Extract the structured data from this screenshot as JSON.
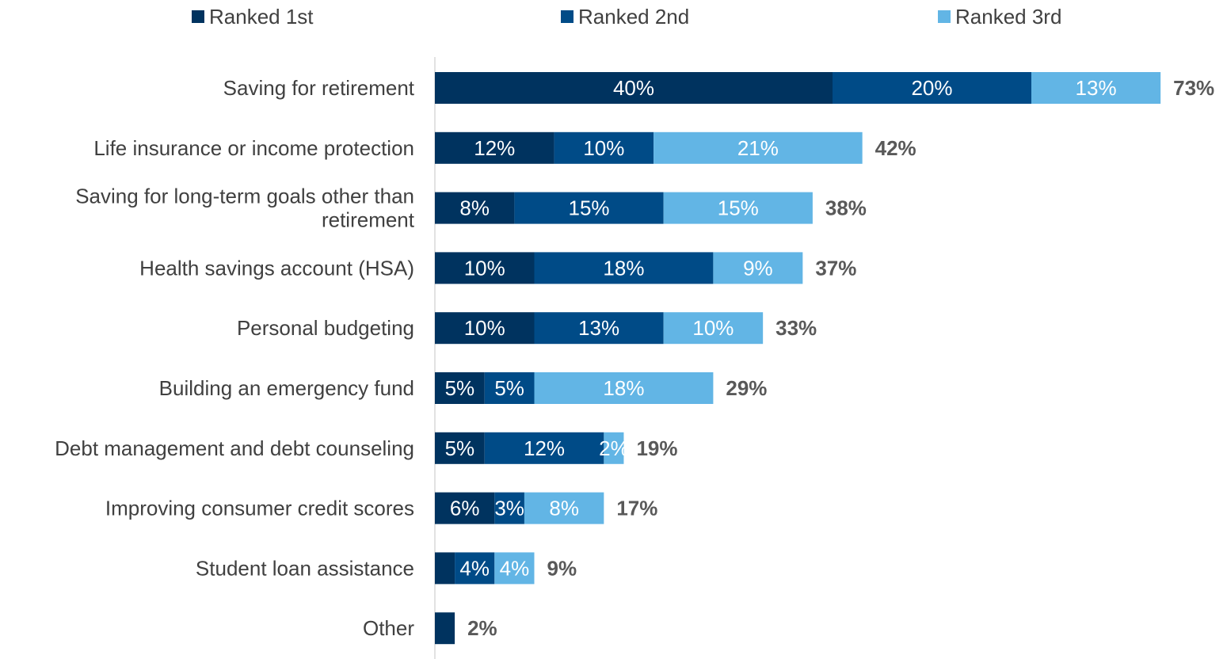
{
  "chart_data": {
    "type": "bar",
    "orientation": "horizontal",
    "stacked": true,
    "title": "",
    "xlabel": "",
    "ylabel": "",
    "xlim": [
      0,
      75
    ],
    "grid": false,
    "legend_position": "top",
    "categories": [
      [
        "Saving for retirement"
      ],
      [
        "Life insurance or income protection"
      ],
      [
        "Saving for long-term goals other than",
        "retirement"
      ],
      [
        "Health savings account (HSA)"
      ],
      [
        "Personal budgeting"
      ],
      [
        "Building an emergency fund"
      ],
      [
        "Debt management and debt counseling"
      ],
      [
        "Improving consumer credit scores"
      ],
      [
        "Student loan assistance"
      ],
      [
        "Other"
      ]
    ],
    "series": [
      {
        "name": "Ranked 1st",
        "color": "#00335F",
        "label_color": "#ffffff",
        "values": [
          40,
          12,
          8,
          10,
          10,
          5,
          5,
          6,
          2,
          2
        ],
        "labels": [
          "40%",
          "12%",
          "8%",
          "10%",
          "10%",
          "5%",
          "5%",
          "6%",
          "",
          ""
        ]
      },
      {
        "name": "Ranked 2nd",
        "color": "#004B87",
        "label_color": "#ffffff",
        "values": [
          20,
          10,
          15,
          18,
          13,
          5,
          12,
          3,
          4,
          0
        ],
        "labels": [
          "20%",
          "10%",
          "15%",
          "18%",
          "13%",
          "5%",
          "12%",
          "3%",
          "4%",
          ""
        ]
      },
      {
        "name": "Ranked 3rd",
        "color": "#62B5E5",
        "label_color": "#ffffff",
        "values": [
          13,
          21,
          15,
          9,
          10,
          18,
          2,
          8,
          4,
          0
        ],
        "labels": [
          "13%",
          "21%",
          "15%",
          "9%",
          "10%",
          "18%",
          "2%",
          "8%",
          "4%",
          ""
        ]
      }
    ],
    "totals": [
      "73%",
      "42%",
      "38%",
      "37%",
      "33%",
      "29%",
      "19%",
      "17%",
      "9%",
      "2%"
    ]
  }
}
